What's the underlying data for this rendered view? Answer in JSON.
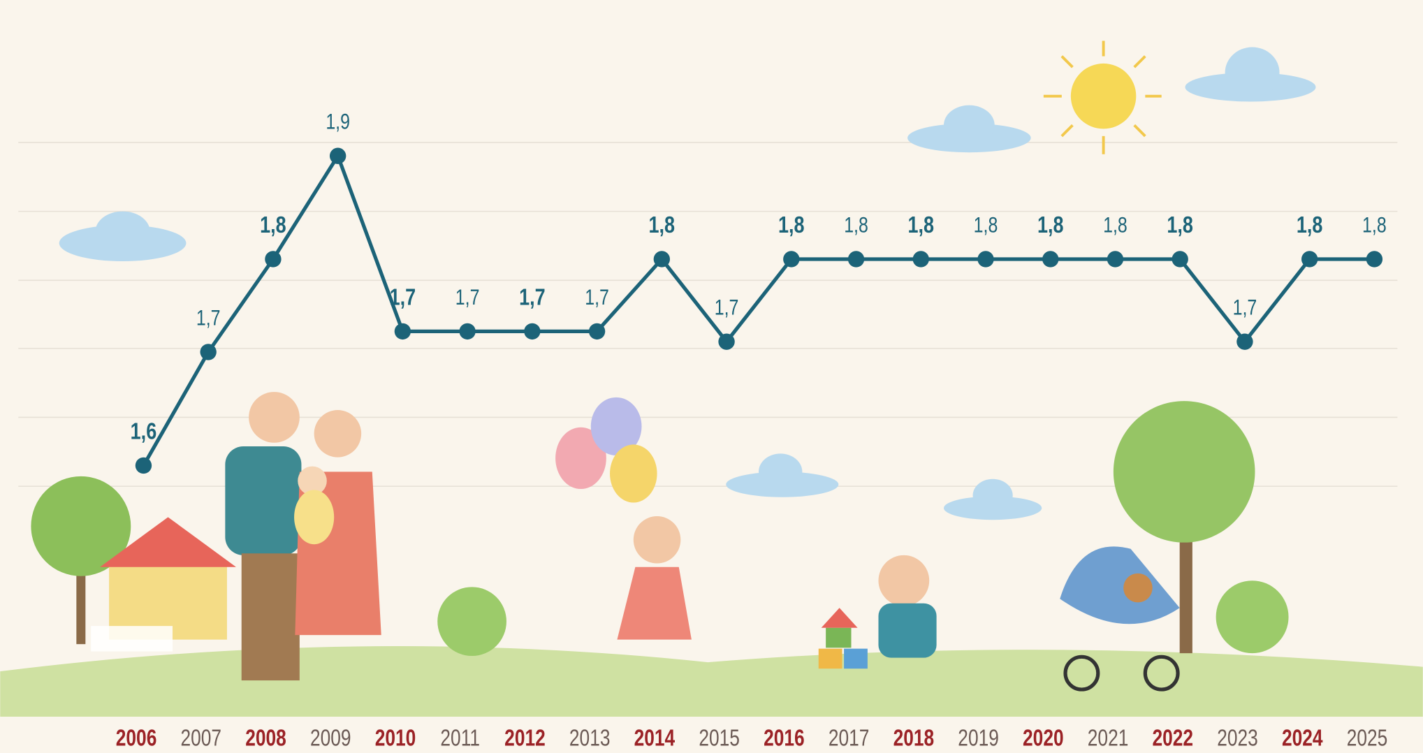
{
  "chart_data": {
    "type": "line",
    "categories": [
      "2006",
      "2007",
      "2008",
      "2009",
      "2010",
      "2011",
      "2012",
      "2013",
      "2014",
      "2015",
      "2016",
      "2017",
      "2018",
      "2019",
      "2020",
      "2021",
      "2022",
      "2023",
      "2024",
      "2025"
    ],
    "series": [
      {
        "color": "#1c6378",
        "values": [
          1.6,
          1.71,
          1.8,
          1.9,
          1.73,
          1.73,
          1.73,
          1.73,
          1.8,
          1.72,
          1.8,
          1.8,
          1.8,
          1.8,
          1.8,
          1.8,
          1.8,
          1.72,
          1.8,
          1.8
        ],
        "value_labels": [
          "1,6",
          "1,7",
          "1,8",
          "1,9",
          "1,7",
          "1,7",
          "1,7",
          "1,7",
          "1,8",
          "1,7",
          "1,8",
          "1,8",
          "1,8",
          "1,8",
          "1,8",
          "1,8",
          "1,8",
          "1,7",
          "1,8",
          "1,8"
        ]
      }
    ],
    "ylim": [
      1.55,
      1.95
    ]
  }
}
